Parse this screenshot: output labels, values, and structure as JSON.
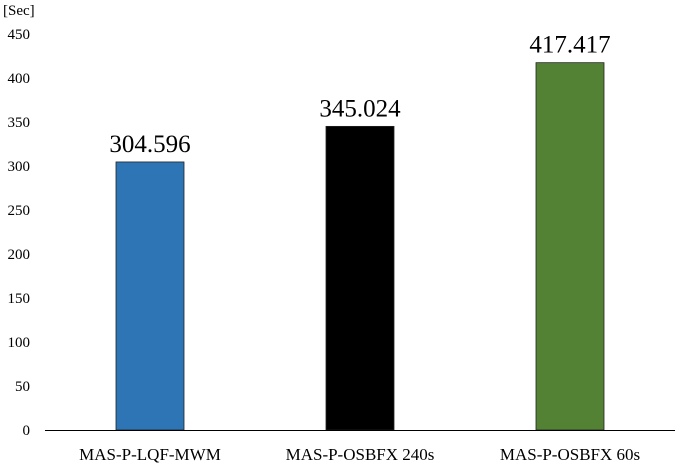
{
  "chart_data": {
    "type": "bar",
    "ylabel": "[Sec]",
    "ylim": [
      0,
      450
    ],
    "yticks": [
      0,
      50,
      100,
      150,
      200,
      250,
      300,
      350,
      400,
      450
    ],
    "categories": [
      "MAS-P-LQF-MWM",
      "MAS-P-OSBFX 240s",
      "MAS-P-OSBFX 60s"
    ],
    "values": [
      304.596,
      345.024,
      417.417
    ],
    "data_labels": [
      "304.596",
      "345.024",
      "417.417"
    ],
    "bar_colors": [
      "#2e75b6",
      "#000000",
      "#548235"
    ],
    "grid": false,
    "legend": false
  }
}
